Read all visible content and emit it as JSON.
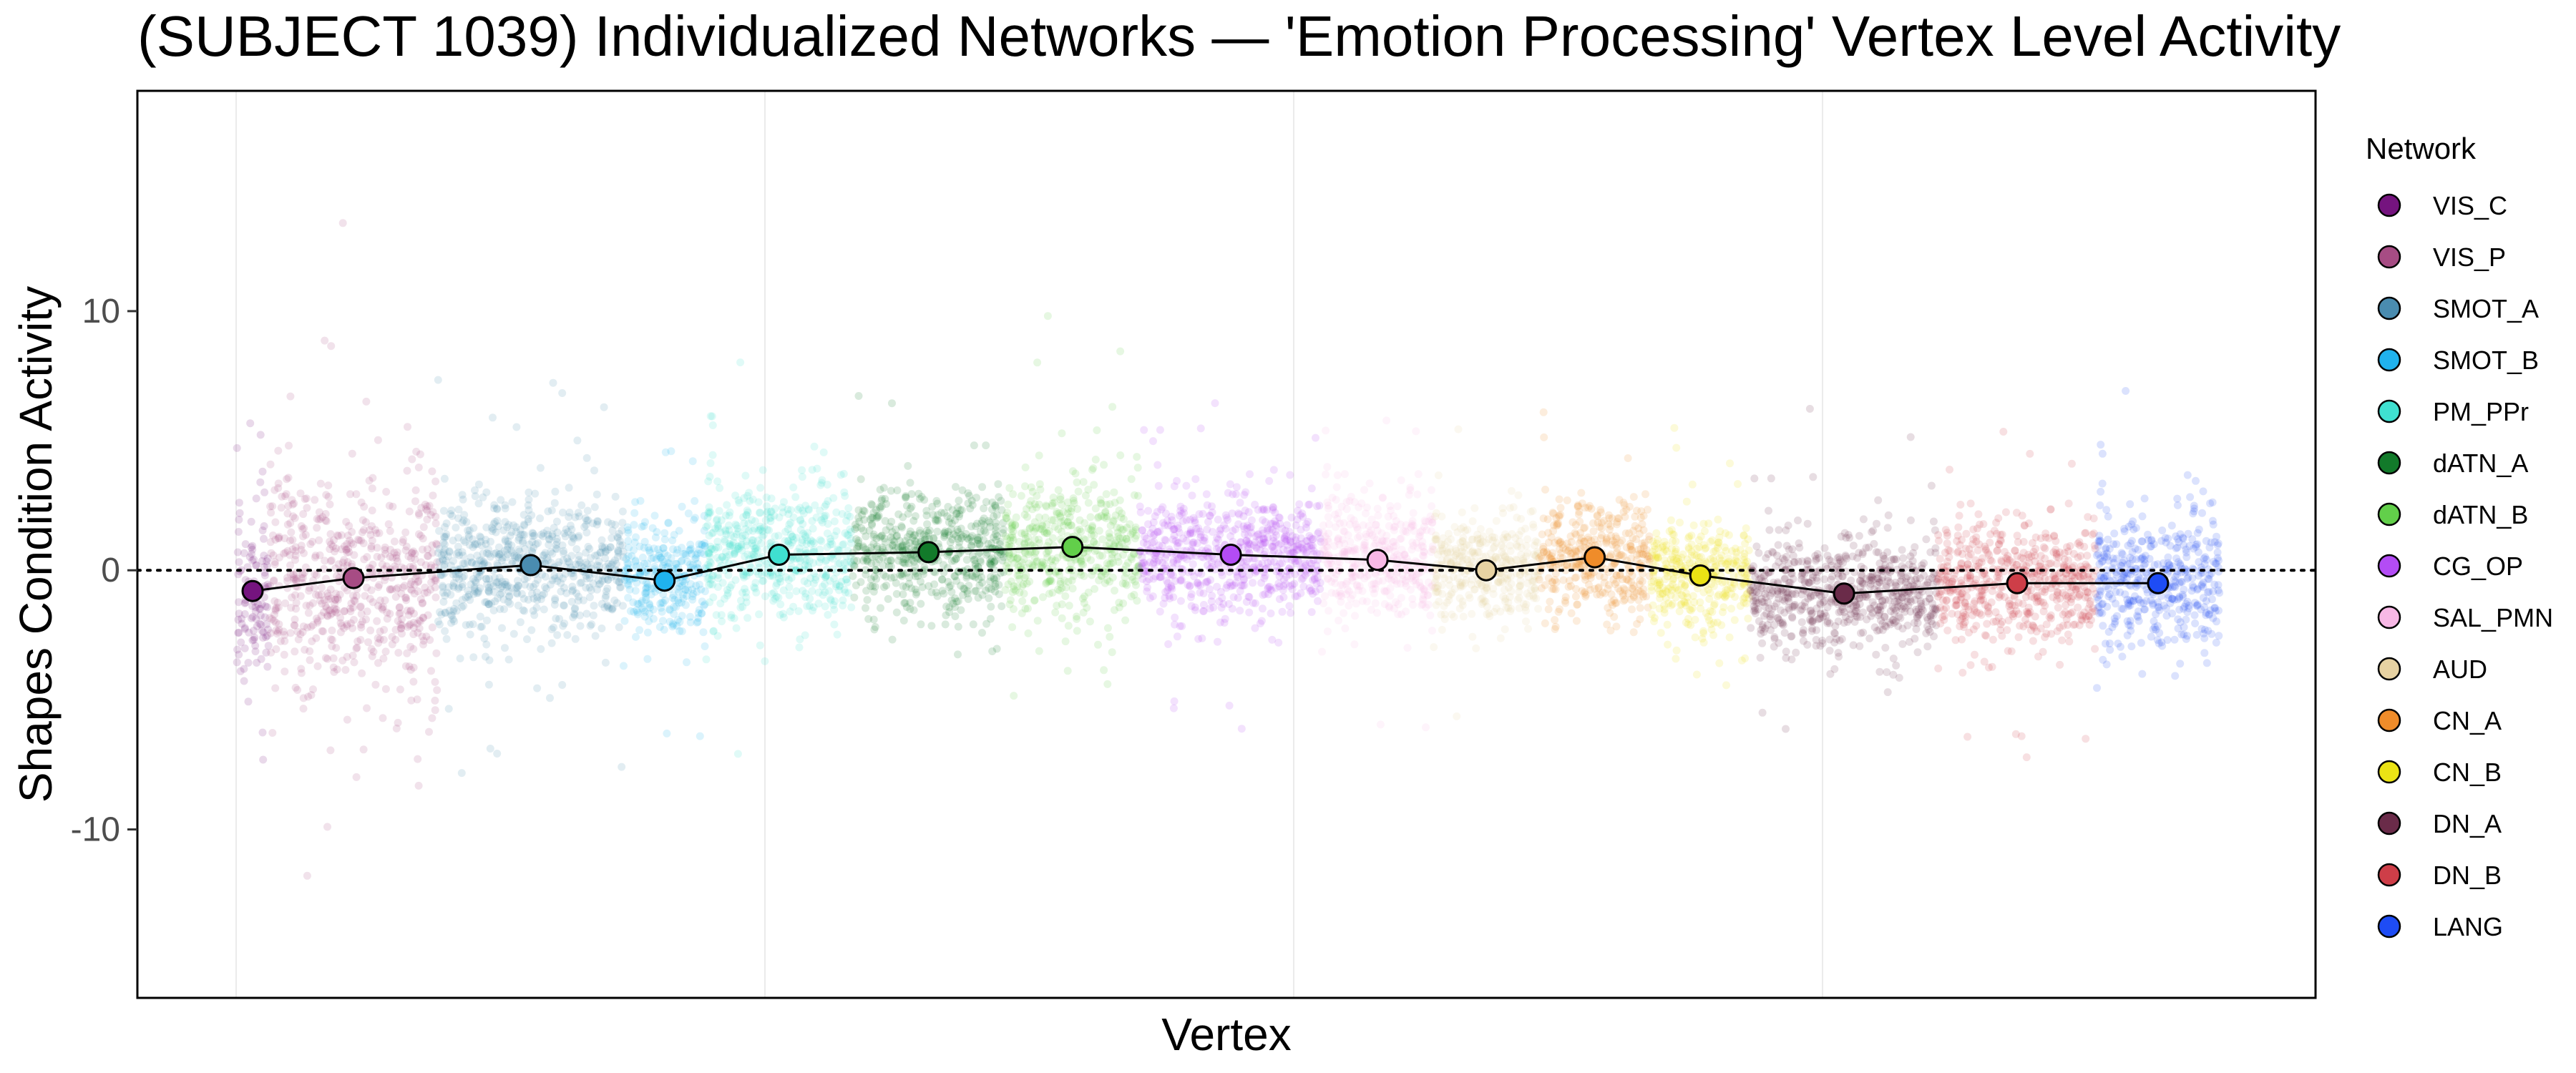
{
  "chart_data": {
    "type": "scatter",
    "title": "(SUBJECT 1039) Individualized Networks — 'Emotion Processing' Vertex Level Activity",
    "xlabel": "Vertex",
    "ylabel": "Shapes Condition Activity",
    "ylim": [
      -16.5,
      18.5
    ],
    "yticks": [
      -10,
      0,
      10
    ],
    "ytick_labels": [
      "-10",
      "0",
      "10"
    ],
    "reference_line_y": 0,
    "grid": true,
    "legend": {
      "title": "Network",
      "placement": "right"
    },
    "series": [
      {
        "name": "VIS_C",
        "color": "#75147F",
        "vertex_range": [
          0,
          28
        ],
        "mean": -0.8,
        "spread": 1.9
      },
      {
        "name": "VIS_P",
        "color": "#A74C84",
        "vertex_range": [
          28,
          172
        ],
        "mean": -0.3,
        "spread": 2.4
      },
      {
        "name": "SMOT_A",
        "color": "#4A8CB0",
        "vertex_range": [
          172,
          330
        ],
        "mean": 0.2,
        "spread": 1.6
      },
      {
        "name": "SMOT_B",
        "color": "#20B2EE",
        "vertex_range": [
          330,
          400
        ],
        "mean": -0.4,
        "spread": 1.3
      },
      {
        "name": "PM_PPr",
        "color": "#3FE0D0",
        "vertex_range": [
          400,
          525
        ],
        "mean": 0.6,
        "spread": 1.5
      },
      {
        "name": "dATN_A",
        "color": "#127A2A",
        "vertex_range": [
          525,
          655
        ],
        "mean": 0.7,
        "spread": 1.4
      },
      {
        "name": "dATN_B",
        "color": "#62CF4A",
        "vertex_range": [
          655,
          770
        ],
        "mean": 0.9,
        "spread": 1.5
      },
      {
        "name": "CG_OP",
        "color": "#B34CF5",
        "vertex_range": [
          770,
          925
        ],
        "mean": 0.6,
        "spread": 1.3
      },
      {
        "name": "SAL_PMN",
        "color": "#F8B8E6",
        "vertex_range": [
          925,
          1020
        ],
        "mean": 0.4,
        "spread": 1.4
      },
      {
        "name": "AUD",
        "color": "#E7D2A2",
        "vertex_range": [
          1020,
          1110
        ],
        "mean": 0.0,
        "spread": 1.1
      },
      {
        "name": "CN_A",
        "color": "#EF8C2A",
        "vertex_range": [
          1110,
          1205
        ],
        "mean": 0.5,
        "spread": 1.3
      },
      {
        "name": "CN_B",
        "color": "#EBE315",
        "vertex_range": [
          1205,
          1290
        ],
        "mean": -0.2,
        "spread": 1.2
      },
      {
        "name": "DN_A",
        "color": "#6A2B49",
        "vertex_range": [
          1290,
          1450
        ],
        "mean": -0.9,
        "spread": 1.2
      },
      {
        "name": "DN_B",
        "color": "#CE3E48",
        "vertex_range": [
          1450,
          1585
        ],
        "mean": -0.5,
        "spread": 1.3
      },
      {
        "name": "LANG",
        "color": "#1E4CF5",
        "vertex_range": [
          1585,
          1690
        ],
        "mean": -0.5,
        "spread": 1.5
      }
    ]
  }
}
